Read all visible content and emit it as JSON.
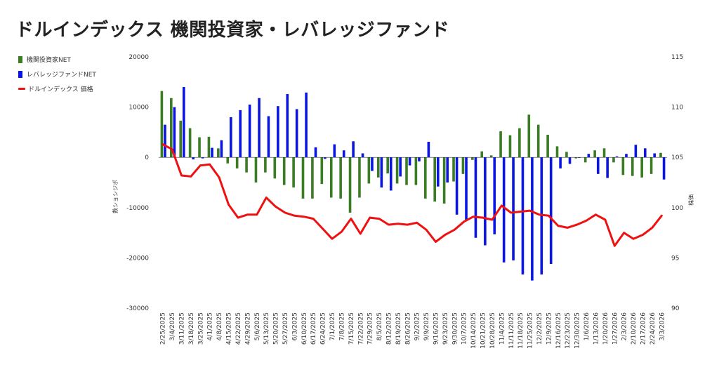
{
  "chart_data": {
    "type": "bar",
    "title": "ドルインデックス 機関投資家・レバレッジファンド",
    "ylabel": "数ショシジポ",
    "y2label": "株価",
    "ylim": [
      -30000,
      20000
    ],
    "y2lim": [
      90,
      115
    ],
    "yticks": [
      "20000",
      "10000",
      "0",
      "-10000",
      "-20000",
      "-30000"
    ],
    "y2ticks": [
      "115",
      "110",
      "105",
      "100",
      "95",
      "90"
    ],
    "colors": {
      "institutional": "#3a7d22",
      "leveraged": "#0a14e0",
      "price": "#ee1111"
    },
    "categories": [
      "2/25/2025",
      "3/4/2025",
      "3/11/2025",
      "3/18/2025",
      "3/25/2025",
      "4/1/2025",
      "4/8/2025",
      "4/15/2025",
      "4/22/2025",
      "4/29/2025",
      "5/6/2025",
      "5/13/2025",
      "5/20/2025",
      "5/27/2025",
      "6/3/2025",
      "6/10/2025",
      "6/17/2025",
      "6/24/2025",
      "7/1/2025",
      "7/8/2025",
      "7/15/2025",
      "7/22/2025",
      "7/29/2025",
      "8/5/2025",
      "8/12/2025",
      "8/19/2025",
      "8/26/2025",
      "9/2/2025",
      "9/9/2025",
      "9/16/2025",
      "9/23/2025",
      "9/30/2025",
      "10/7/2025",
      "10/14/2025",
      "10/21/2025",
      "10/28/2025",
      "11/4/2025",
      "11/11/2025",
      "11/18/2025",
      "11/25/2025",
      "12/2/2025",
      "12/9/2025",
      "12/16/2025",
      "12/23/2025",
      "12/30/2025",
      "1/6/2026",
      "1/13/2026",
      "1/20/2026",
      "1/27/2026",
      "2/3/2026",
      "2/10/2026",
      "2/17/2026",
      "2/24/2026",
      "3/3/2026"
    ],
    "series": [
      {
        "name": "機関投資家NET",
        "kind": "bar",
        "values": [
          13200,
          11800,
          7300,
          5800,
          4000,
          4100,
          1800,
          -1200,
          -2200,
          -3000,
          -5000,
          -3000,
          -4200,
          -5500,
          -6000,
          -8200,
          -8200,
          -5300,
          -8000,
          -8200,
          -11000,
          -8000,
          -5200,
          -4000,
          -3200,
          -5200,
          -5500,
          -5500,
          -8200,
          -8800,
          -9200,
          -4800,
          -3300,
          -500,
          1200,
          400,
          5200,
          4400,
          5800,
          8500,
          6500,
          4500,
          2200,
          1100,
          -200,
          -1000,
          1400,
          1800,
          -1000,
          -3500,
          -3700,
          -4000,
          -3300,
          900
        ]
      },
      {
        "name": "レバレッジファンドNET",
        "kind": "bar",
        "values": [
          6500,
          10000,
          14000,
          -400,
          -200,
          1900,
          3400,
          8000,
          9400,
          10500,
          11800,
          8200,
          10200,
          12600,
          9600,
          12900,
          2000,
          -300,
          2600,
          1400,
          3200,
          800,
          -2700,
          -6000,
          -6600,
          -3800,
          -1600,
          -800,
          3100,
          -5800,
          -5000,
          -11400,
          -12400,
          -16000,
          -17500,
          -15300,
          -20900,
          -20500,
          -23300,
          -24500,
          -23300,
          -21200,
          -2200,
          -1300,
          -100,
          700,
          -3300,
          -4100,
          200,
          700,
          2500,
          1800,
          800,
          -4400
        ]
      },
      {
        "name": "ドルインデックス 価格",
        "kind": "line",
        "values": [
          106.3,
          105.8,
          103.2,
          103.1,
          104.2,
          104.3,
          103.0,
          100.3,
          99.0,
          99.3,
          99.3,
          101.0,
          100.1,
          99.5,
          99.2,
          99.1,
          98.9,
          97.9,
          96.9,
          97.6,
          98.9,
          97.4,
          99.0,
          98.9,
          98.3,
          98.4,
          98.3,
          98.5,
          97.8,
          96.6,
          97.3,
          97.8,
          98.6,
          99.1,
          99.0,
          98.8,
          100.2,
          99.5,
          99.6,
          99.7,
          99.3,
          99.2,
          98.2,
          98.0,
          98.3,
          98.7,
          99.3,
          98.8,
          96.2,
          97.5,
          96.9,
          97.3,
          98.0,
          99.2
        ]
      }
    ]
  }
}
